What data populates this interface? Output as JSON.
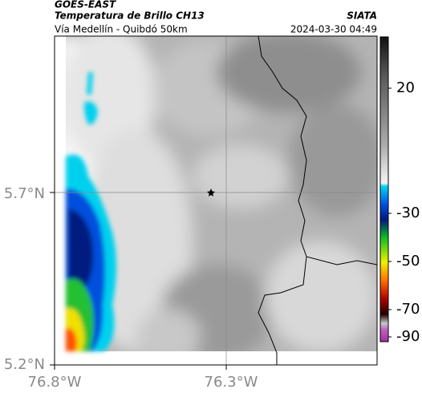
{
  "header": {
    "satellite": "GOES-EAST",
    "product": "Temperatura de Brillo CH13",
    "source": "SIATA",
    "route": "Vía Medellín - Quibdó 50km",
    "timestamp": "2024-03-30 04:49"
  },
  "map": {
    "lat_labels": [
      "5.7°N",
      "5.2°N"
    ],
    "lon_labels": [
      "76.8°W",
      "76.3°W"
    ]
  },
  "colorbar": {
    "ticks": [
      20,
      -30,
      -50,
      -70,
      -90
    ]
  }
}
